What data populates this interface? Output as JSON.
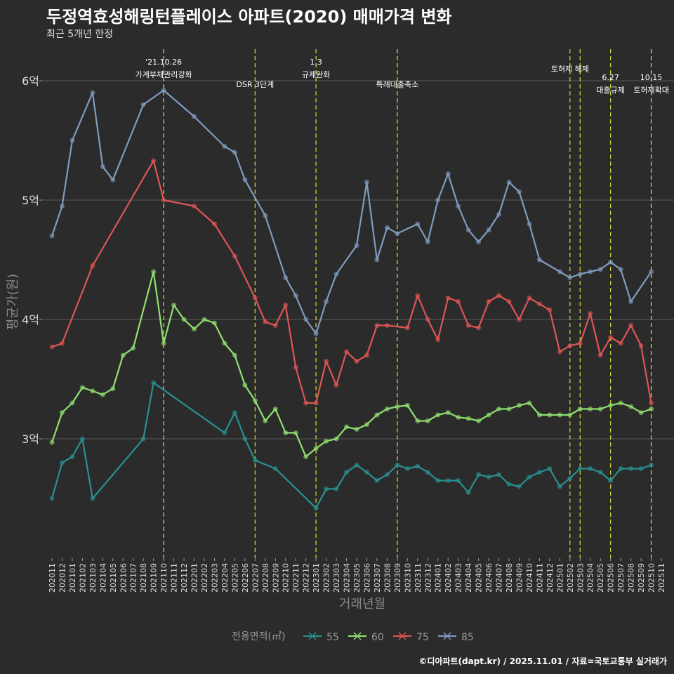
{
  "header": {
    "title": "두정역효성해링턴플레이스 아파트(2020) 매매가격 변화",
    "subtitle": "최근 5개년 한정"
  },
  "footer": "©디아파트(dapt.kr) / 2025.11.01 / 자료=국토교통부 실거래가",
  "chart_data": {
    "type": "line",
    "title": "두정역효성해링턴플레이스 아파트(2020) 매매가격 변화",
    "xlabel": "거래년월",
    "ylabel": "평균가(원)",
    "ylim": [
      2.0,
      6.3
    ],
    "yticks": [
      {
        "v": 3,
        "label": "3억"
      },
      {
        "v": 4,
        "label": "4억"
      },
      {
        "v": 5,
        "label": "5억"
      },
      {
        "v": 6,
        "label": "6억"
      }
    ],
    "x": [
      "202011",
      "202012",
      "202101",
      "202102",
      "202103",
      "202104",
      "202105",
      "202106",
      "202107",
      "202108",
      "202109",
      "202110",
      "202111",
      "202112",
      "202201",
      "202202",
      "202203",
      "202204",
      "202205",
      "202206",
      "202207",
      "202208",
      "202209",
      "202210",
      "202211",
      "202212",
      "202301",
      "202302",
      "202303",
      "202304",
      "202305",
      "202306",
      "202307",
      "202308",
      "202309",
      "202310",
      "202311",
      "202312",
      "202401",
      "202402",
      "202403",
      "202404",
      "202405",
      "202406",
      "202407",
      "202408",
      "202409",
      "202410",
      "202411",
      "202412",
      "202501",
      "202502",
      "202503",
      "202504",
      "202505",
      "202506",
      "202507",
      "202508",
      "202509",
      "202510",
      "202511"
    ],
    "legend": {
      "title": "전용면적(㎡)",
      "position": "bottom"
    },
    "series": [
      {
        "name": "55",
        "color": "#2a9090",
        "points": [
          [
            0,
            2.5
          ],
          [
            1,
            2.8
          ],
          [
            2,
            2.85
          ],
          [
            3,
            3.0
          ],
          [
            4,
            2.5
          ],
          [
            9,
            3.0
          ],
          [
            10,
            3.47
          ],
          [
            17,
            3.05
          ],
          [
            18,
            3.22
          ],
          [
            19,
            3.0
          ],
          [
            20,
            2.82
          ],
          [
            22,
            2.75
          ],
          [
            26,
            2.42
          ],
          [
            27,
            2.58
          ],
          [
            28,
            2.58
          ],
          [
            29,
            2.72
          ],
          [
            30,
            2.78
          ],
          [
            31,
            2.72
          ],
          [
            32,
            2.65
          ],
          [
            33,
            2.7
          ],
          [
            34,
            2.78
          ],
          [
            35,
            2.75
          ],
          [
            36,
            2.77
          ],
          [
            37,
            2.72
          ],
          [
            38,
            2.65
          ],
          [
            39,
            2.65
          ],
          [
            40,
            2.65
          ],
          [
            41,
            2.55
          ],
          [
            42,
            2.7
          ],
          [
            43,
            2.68
          ],
          [
            44,
            2.7
          ],
          [
            45,
            2.62
          ],
          [
            46,
            2.6
          ],
          [
            47,
            2.68
          ],
          [
            48,
            2.72
          ],
          [
            49,
            2.75
          ],
          [
            50,
            2.6
          ],
          [
            51,
            2.67
          ],
          [
            52,
            2.75
          ],
          [
            53,
            2.75
          ],
          [
            54,
            2.72
          ],
          [
            55,
            2.65
          ],
          [
            56,
            2.75
          ],
          [
            57,
            2.75
          ],
          [
            58,
            2.75
          ],
          [
            59,
            2.78
          ]
        ]
      },
      {
        "name": "60",
        "color": "#90e070",
        "points": [
          [
            0,
            2.97
          ],
          [
            1,
            3.22
          ],
          [
            2,
            3.3
          ],
          [
            3,
            3.43
          ],
          [
            4,
            3.4
          ],
          [
            5,
            3.37
          ],
          [
            6,
            3.42
          ],
          [
            7,
            3.7
          ],
          [
            8,
            3.76
          ],
          [
            10,
            4.4
          ],
          [
            11,
            3.8
          ],
          [
            12,
            4.12
          ],
          [
            13,
            4.0
          ],
          [
            14,
            3.92
          ],
          [
            15,
            4.0
          ],
          [
            16,
            3.97
          ],
          [
            17,
            3.8
          ],
          [
            18,
            3.7
          ],
          [
            19,
            3.45
          ],
          [
            20,
            3.32
          ],
          [
            21,
            3.15
          ],
          [
            22,
            3.25
          ],
          [
            23,
            3.05
          ],
          [
            24,
            3.05
          ],
          [
            25,
            2.85
          ],
          [
            26,
            2.92
          ],
          [
            27,
            2.98
          ],
          [
            28,
            3.0
          ],
          [
            29,
            3.1
          ],
          [
            30,
            3.08
          ],
          [
            31,
            3.12
          ],
          [
            32,
            3.2
          ],
          [
            33,
            3.25
          ],
          [
            34,
            3.27
          ],
          [
            35,
            3.28
          ],
          [
            36,
            3.15
          ],
          [
            37,
            3.15
          ],
          [
            38,
            3.2
          ],
          [
            39,
            3.22
          ],
          [
            40,
            3.18
          ],
          [
            41,
            3.17
          ],
          [
            42,
            3.15
          ],
          [
            43,
            3.2
          ],
          [
            44,
            3.25
          ],
          [
            45,
            3.25
          ],
          [
            46,
            3.28
          ],
          [
            47,
            3.3
          ],
          [
            48,
            3.2
          ],
          [
            49,
            3.2
          ],
          [
            50,
            3.2
          ],
          [
            51,
            3.2
          ],
          [
            52,
            3.25
          ],
          [
            53,
            3.25
          ],
          [
            54,
            3.25
          ],
          [
            55,
            3.28
          ],
          [
            56,
            3.3
          ],
          [
            57,
            3.27
          ],
          [
            58,
            3.22
          ],
          [
            59,
            3.25
          ]
        ]
      },
      {
        "name": "75",
        "color": "#e05555",
        "points": [
          [
            0,
            3.77
          ],
          [
            1,
            3.8
          ],
          [
            4,
            4.45
          ],
          [
            10,
            5.33
          ],
          [
            11,
            5.0
          ],
          [
            14,
            4.95
          ],
          [
            16,
            4.8
          ],
          [
            18,
            4.53
          ],
          [
            20,
            4.18
          ],
          [
            21,
            3.98
          ],
          [
            22,
            3.95
          ],
          [
            23,
            4.12
          ],
          [
            24,
            3.6
          ],
          [
            25,
            3.3
          ],
          [
            26,
            3.3
          ],
          [
            27,
            3.65
          ],
          [
            28,
            3.45
          ],
          [
            29,
            3.73
          ],
          [
            30,
            3.65
          ],
          [
            31,
            3.7
          ],
          [
            32,
            3.95
          ],
          [
            33,
            3.95
          ],
          [
            35,
            3.93
          ],
          [
            36,
            4.2
          ],
          [
            37,
            4.0
          ],
          [
            38,
            3.83
          ],
          [
            39,
            4.18
          ],
          [
            40,
            4.15
          ],
          [
            41,
            3.95
          ],
          [
            42,
            3.93
          ],
          [
            43,
            4.15
          ],
          [
            44,
            4.2
          ],
          [
            45,
            4.15
          ],
          [
            46,
            4.0
          ],
          [
            47,
            4.18
          ],
          [
            48,
            4.13
          ],
          [
            49,
            4.08
          ],
          [
            50,
            3.73
          ],
          [
            51,
            3.78
          ],
          [
            52,
            3.8
          ],
          [
            53,
            4.05
          ],
          [
            54,
            3.7
          ],
          [
            55,
            3.85
          ],
          [
            56,
            3.8
          ],
          [
            57,
            3.95
          ],
          [
            58,
            3.78
          ],
          [
            59,
            3.3
          ]
        ]
      },
      {
        "name": "85",
        "color": "#7f9cc0",
        "points": [
          [
            0,
            4.7
          ],
          [
            1,
            4.95
          ],
          [
            2,
            5.5
          ],
          [
            4,
            5.9
          ],
          [
            5,
            5.28
          ],
          [
            6,
            5.17
          ],
          [
            9,
            5.8
          ],
          [
            11,
            5.92
          ],
          [
            14,
            5.7
          ],
          [
            17,
            5.45
          ],
          [
            18,
            5.4
          ],
          [
            19,
            5.17
          ],
          [
            21,
            4.87
          ],
          [
            23,
            4.35
          ],
          [
            24,
            4.2
          ],
          [
            25,
            4.0
          ],
          [
            26,
            3.88
          ],
          [
            27,
            4.15
          ],
          [
            28,
            4.38
          ],
          [
            30,
            4.62
          ],
          [
            31,
            5.15
          ],
          [
            32,
            4.5
          ],
          [
            33,
            4.77
          ],
          [
            34,
            4.72
          ],
          [
            36,
            4.8
          ],
          [
            37,
            4.65
          ],
          [
            38,
            5.0
          ],
          [
            39,
            5.22
          ],
          [
            40,
            4.95
          ],
          [
            41,
            4.75
          ],
          [
            42,
            4.65
          ],
          [
            43,
            4.75
          ],
          [
            44,
            4.88
          ],
          [
            45,
            5.15
          ],
          [
            46,
            5.07
          ],
          [
            47,
            4.8
          ],
          [
            48,
            4.5
          ],
          [
            50,
            4.4
          ],
          [
            51,
            4.35
          ],
          [
            52,
            4.38
          ],
          [
            53,
            4.4
          ],
          [
            54,
            4.42
          ],
          [
            55,
            4.48
          ],
          [
            56,
            4.42
          ],
          [
            57,
            4.15
          ],
          [
            59,
            4.4
          ]
        ]
      }
    ],
    "events": [
      {
        "x": "202110",
        "lines": [
          "'21.10.26",
          "가계부채관리강화"
        ],
        "row": 0
      },
      {
        "x": "202207",
        "lines": [
          "DSR 3단계"
        ],
        "row": 2
      },
      {
        "x": "202301",
        "lines": [
          "1.3",
          "규제완화"
        ],
        "row": 0
      },
      {
        "x": "202309",
        "lines": [
          "특례대출축소"
        ],
        "row": 2
      },
      {
        "x": "202502",
        "lines": [
          "토허제 해제"
        ],
        "row": 1
      },
      {
        "x": "202503",
        "lines": [],
        "row": 1
      },
      {
        "x": "202506",
        "lines": [
          "6.27",
          "대출규제"
        ],
        "row": 3
      },
      {
        "x": "202510",
        "lines": [
          "10.15",
          "토허제확대"
        ],
        "row": 3
      }
    ]
  }
}
